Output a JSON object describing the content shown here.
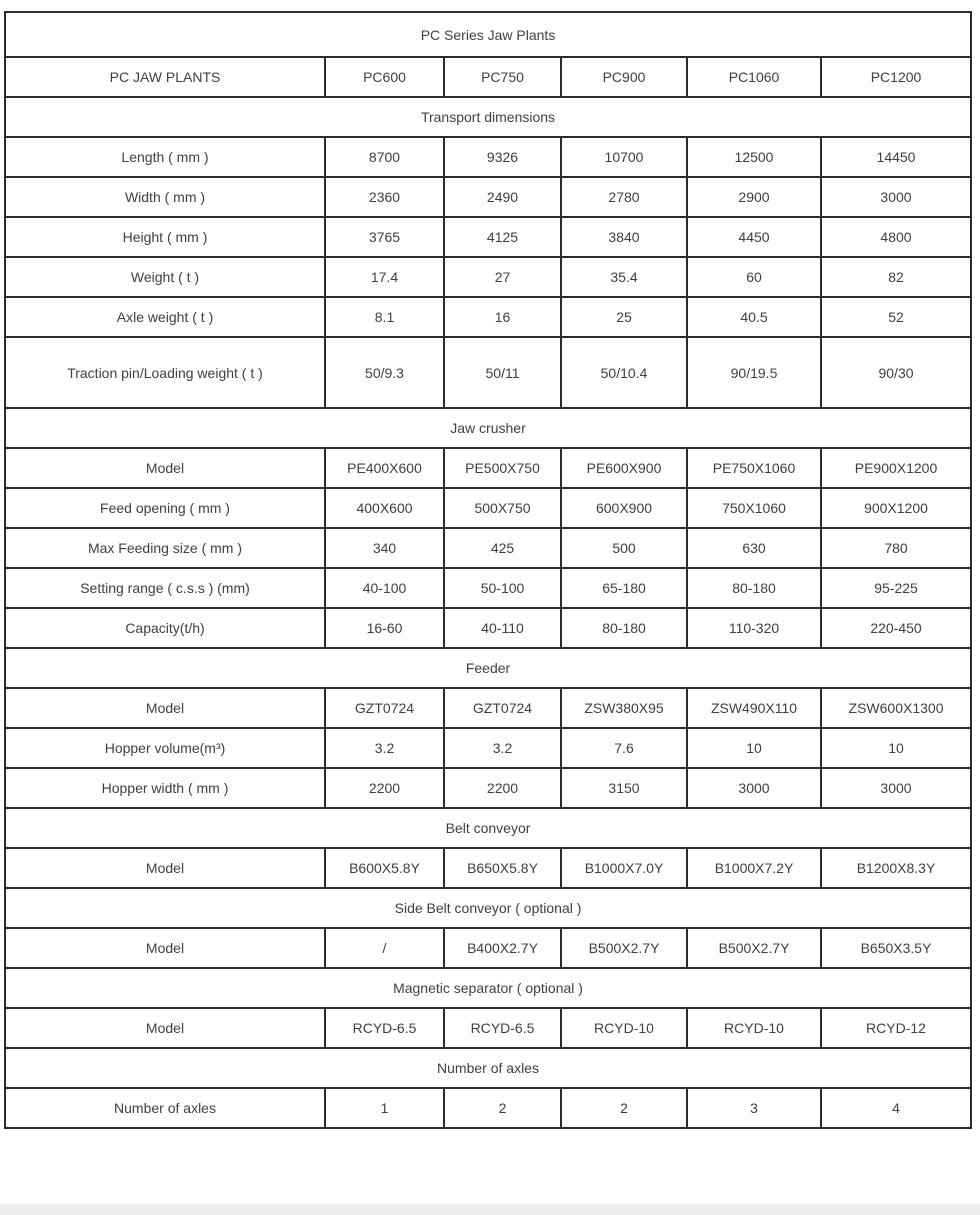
{
  "colors": {
    "background": "#ffffff",
    "border": "#2d2d2d",
    "text": "#404040",
    "bottom_bar": "#ececec"
  },
  "table": {
    "title": "PC Series Jaw Plants",
    "header": {
      "label": "PC JAW PLANTS",
      "columns": [
        "PC600",
        "PC750",
        "PC900",
        "PC1060",
        "PC1200"
      ]
    },
    "sections": [
      {
        "title": "Transport dimensions",
        "rows": [
          {
            "label": "Length ( mm )",
            "values": [
              "8700",
              "9326",
              "10700",
              "12500",
              "14450"
            ]
          },
          {
            "label": "Width ( mm )",
            "values": [
              "2360",
              "2490",
              "2780",
              "2900",
              "3000"
            ]
          },
          {
            "label": "Height ( mm )",
            "values": [
              "3765",
              "4125",
              "3840",
              "4450",
              "4800"
            ]
          },
          {
            "label": "Weight ( t )",
            "values": [
              "17.4",
              "27",
              "35.4",
              "60",
              "82"
            ]
          },
          {
            "label": "Axle weight ( t )",
            "values": [
              "8.1",
              "16",
              "25",
              "40.5",
              "52"
            ]
          },
          {
            "label": "Traction pin/Loading weight ( t )",
            "values": [
              "50/9.3",
              "50/11",
              "50/10.4",
              "90/19.5",
              "90/30"
            ],
            "tall": true
          }
        ]
      },
      {
        "title": "Jaw crusher",
        "rows": [
          {
            "label": "Model",
            "values": [
              "PE400X600",
              "PE500X750",
              "PE600X900",
              "PE750X1060",
              "PE900X1200"
            ]
          },
          {
            "label": "Feed opening ( mm )",
            "values": [
              "400X600",
              "500X750",
              "600X900",
              "750X1060",
              "900X1200"
            ]
          },
          {
            "label": "Max Feeding size ( mm )",
            "values": [
              "340",
              "425",
              "500",
              "630",
              "780"
            ]
          },
          {
            "label": "Setting range ( c.s.s ) (mm)",
            "values": [
              "40-100",
              "50-100",
              "65-180",
              "80-180",
              "95-225"
            ]
          },
          {
            "label": "Capacity(t/h)",
            "values": [
              "16-60",
              "40-110",
              "80-180",
              "110-320",
              "220-450"
            ]
          }
        ]
      },
      {
        "title": "Feeder",
        "rows": [
          {
            "label": "Model",
            "values": [
              "GZT0724",
              "GZT0724",
              "ZSW380X95",
              "ZSW490X110",
              "ZSW600X1300"
            ]
          },
          {
            "label": "Hopper volume(m³)",
            "values": [
              "3.2",
              "3.2",
              "7.6",
              "10",
              "10"
            ]
          },
          {
            "label": "Hopper width ( mm )",
            "values": [
              "2200",
              "2200",
              "3150",
              "3000",
              "3000"
            ]
          }
        ]
      },
      {
        "title": "Belt conveyor",
        "rows": [
          {
            "label": "Model",
            "values": [
              "B600X5.8Y",
              "B650X5.8Y",
              "B1000X7.0Y",
              "B1000X7.2Y",
              "B1200X8.3Y"
            ]
          }
        ]
      },
      {
        "title": "Side Belt conveyor ( optional )",
        "rows": [
          {
            "label": "Model",
            "values": [
              "/",
              "B400X2.7Y",
              "B500X2.7Y",
              "B500X2.7Y",
              "B650X3.5Y"
            ]
          }
        ]
      },
      {
        "title": "Magnetic separator ( optional )",
        "rows": [
          {
            "label": "Model",
            "values": [
              "RCYD-6.5",
              "RCYD-6.5",
              "RCYD-10",
              "RCYD-10",
              "RCYD-12"
            ]
          }
        ]
      },
      {
        "title": "Number of axles",
        "rows": [
          {
            "label": "Number of axles",
            "values": [
              "1",
              "2",
              "2",
              "3",
              "4"
            ]
          }
        ]
      }
    ]
  }
}
